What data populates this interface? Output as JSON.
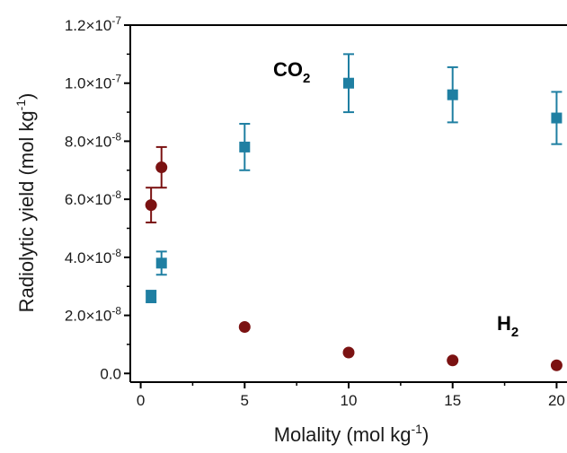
{
  "chart_data": {
    "type": "scatter",
    "xlabel": "Molality (mol kg",
    "xlabel_sup": "-1",
    "xlabel_end": ")",
    "ylabel": "Radiolytic yield (mol kg",
    "ylabel_sup": "-1",
    "ylabel_end": ")",
    "xlim": [
      -0.5,
      20.5
    ],
    "ylim": [
      -3e-09,
      1.2e-07
    ],
    "xticks": [
      0,
      5,
      10,
      15,
      20
    ],
    "xtick_labels": [
      "0",
      "5",
      "10",
      "15",
      "20"
    ],
    "yticks": [
      0,
      2e-08,
      4e-08,
      6e-08,
      8e-08,
      1e-07,
      1.2e-07
    ],
    "ytick_labels": [
      {
        "mant": "0.0",
        "exp": ""
      },
      {
        "mant": "2.0×10",
        "exp": "-8"
      },
      {
        "mant": "4.0×10",
        "exp": "-8"
      },
      {
        "mant": "6.0×10",
        "exp": "-8"
      },
      {
        "mant": "8.0×10",
        "exp": "-8"
      },
      {
        "mant": "1.0×10",
        "exp": "-7"
      },
      {
        "mant": "1.2×10",
        "exp": "-7"
      }
    ],
    "grid": false,
    "series": [
      {
        "name": "CO",
        "name_sub": "2",
        "marker": "square",
        "color": "#1f7fa2",
        "points": [
          {
            "x": 0.5,
            "y": 2.65e-08,
            "err": 2e-09
          },
          {
            "x": 1,
            "y": 3.8e-08,
            "err": 4e-09
          },
          {
            "x": 5,
            "y": 7.8e-08,
            "err": 8e-09
          },
          {
            "x": 10,
            "y": 1e-07,
            "err": 1e-08
          },
          {
            "x": 15,
            "y": 9.6e-08,
            "err": 9.5e-09
          },
          {
            "x": 20,
            "y": 8.8e-08,
            "err": 9e-09
          }
        ]
      },
      {
        "name": "H",
        "name_sub": "2",
        "marker": "circle",
        "color": "#7b1212",
        "points": [
          {
            "x": 0.5,
            "y": 5.8e-08,
            "err": 6e-09
          },
          {
            "x": 1,
            "y": 7.1e-08,
            "err": 7e-09
          },
          {
            "x": 5,
            "y": 1.6e-08,
            "err": 0
          },
          {
            "x": 10,
            "y": 7.2e-09,
            "err": 0
          },
          {
            "x": 15,
            "y": 4.5e-09,
            "err": 0
          },
          {
            "x": 20,
            "y": 2.8e-09,
            "err": 0
          }
        ]
      }
    ]
  }
}
